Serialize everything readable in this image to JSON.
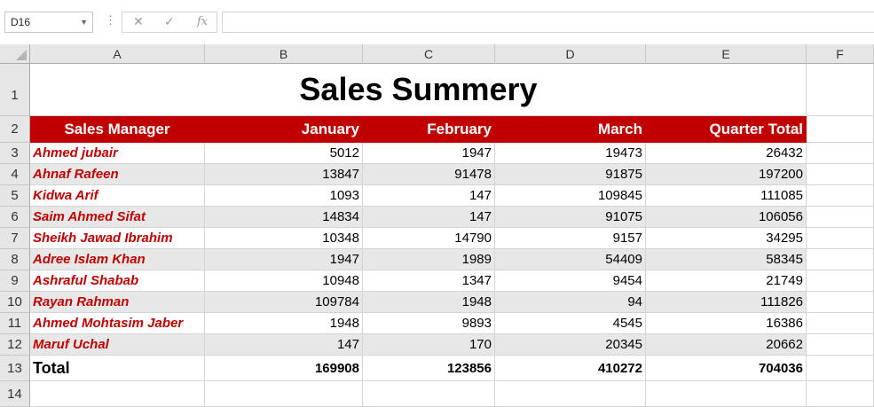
{
  "formula_bar": {
    "name_box": "D16",
    "cancel_symbol": "✕",
    "enter_symbol": "✓",
    "fx_label": "fx",
    "formula": ""
  },
  "columns": [
    "A",
    "B",
    "C",
    "D",
    "E",
    "F"
  ],
  "row_numbers": [
    "1",
    "2",
    "3",
    "4",
    "5",
    "6",
    "7",
    "8",
    "9",
    "10",
    "11",
    "12",
    "13",
    "14"
  ],
  "sheet": {
    "title": "Sales Summery",
    "headers": [
      "Sales Manager",
      "January",
      "February",
      "March",
      "Quarter Total"
    ],
    "rows": [
      [
        "Ahmed jubair",
        "5012",
        "1947",
        "19473",
        "26432"
      ],
      [
        "Ahnaf Rafeen",
        "13847",
        "91478",
        "91875",
        "197200"
      ],
      [
        "Kidwa Arif",
        "1093",
        "147",
        "109845",
        "111085"
      ],
      [
        "Saim Ahmed Sifat",
        "14834",
        "147",
        "91075",
        "106056"
      ],
      [
        "Sheikh Jawad Ibrahim",
        "10348",
        "14790",
        "9157",
        "34295"
      ],
      [
        "Adree Islam Khan",
        "1947",
        "1989",
        "54409",
        "58345"
      ],
      [
        "Ashraful Shabab",
        "10948",
        "1347",
        "9454",
        "21749"
      ],
      [
        "Rayan Rahman",
        "109784",
        "1948",
        "94",
        "111826"
      ],
      [
        "Ahmed Mohtasim Jaber",
        "1948",
        "9893",
        "4545",
        "16386"
      ],
      [
        "Maruf Uchal",
        "147",
        "170",
        "20345",
        "20662"
      ]
    ],
    "total": [
      "Total",
      "169908",
      "123856",
      "410272",
      "704036"
    ]
  },
  "colors": {
    "header_fill": "#c00000",
    "name_text": "#c00000",
    "band_fill": "#e7e7e7"
  }
}
